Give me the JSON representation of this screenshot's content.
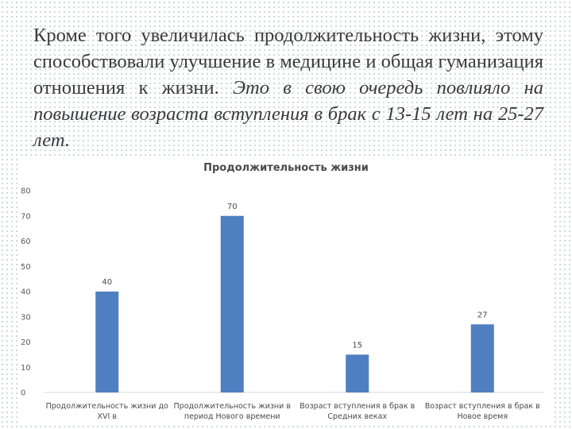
{
  "slide": {
    "text_regular": "Кроме того увеличилась продолжительность жизни, этому способствовали улучшение в медицине и общая гуманизация отношения к жизни.",
    "text_italic": "Это в свою очередь повлияло на повышение возраста вступления в брак с 13-15 лет на 25-27 лет."
  },
  "chart_data": {
    "type": "bar",
    "title": "Продолжительность жизни",
    "categories": [
      [
        "Продолжительность жизни до",
        "XVI в"
      ],
      [
        "Продолжительность жизни в",
        "период Нового времени"
      ],
      [
        "Возраст вступления в брак в",
        "Средних веках"
      ],
      [
        "Возраст вступления в брак в",
        "Новое время"
      ]
    ],
    "values": [
      40,
      70,
      15,
      27
    ],
    "ylim": [
      0,
      80
    ],
    "yticks": [
      0,
      10,
      20,
      30,
      40,
      50,
      60,
      70,
      80
    ],
    "grid": false,
    "legend": "none",
    "bar_color": "#4f7fc0"
  }
}
